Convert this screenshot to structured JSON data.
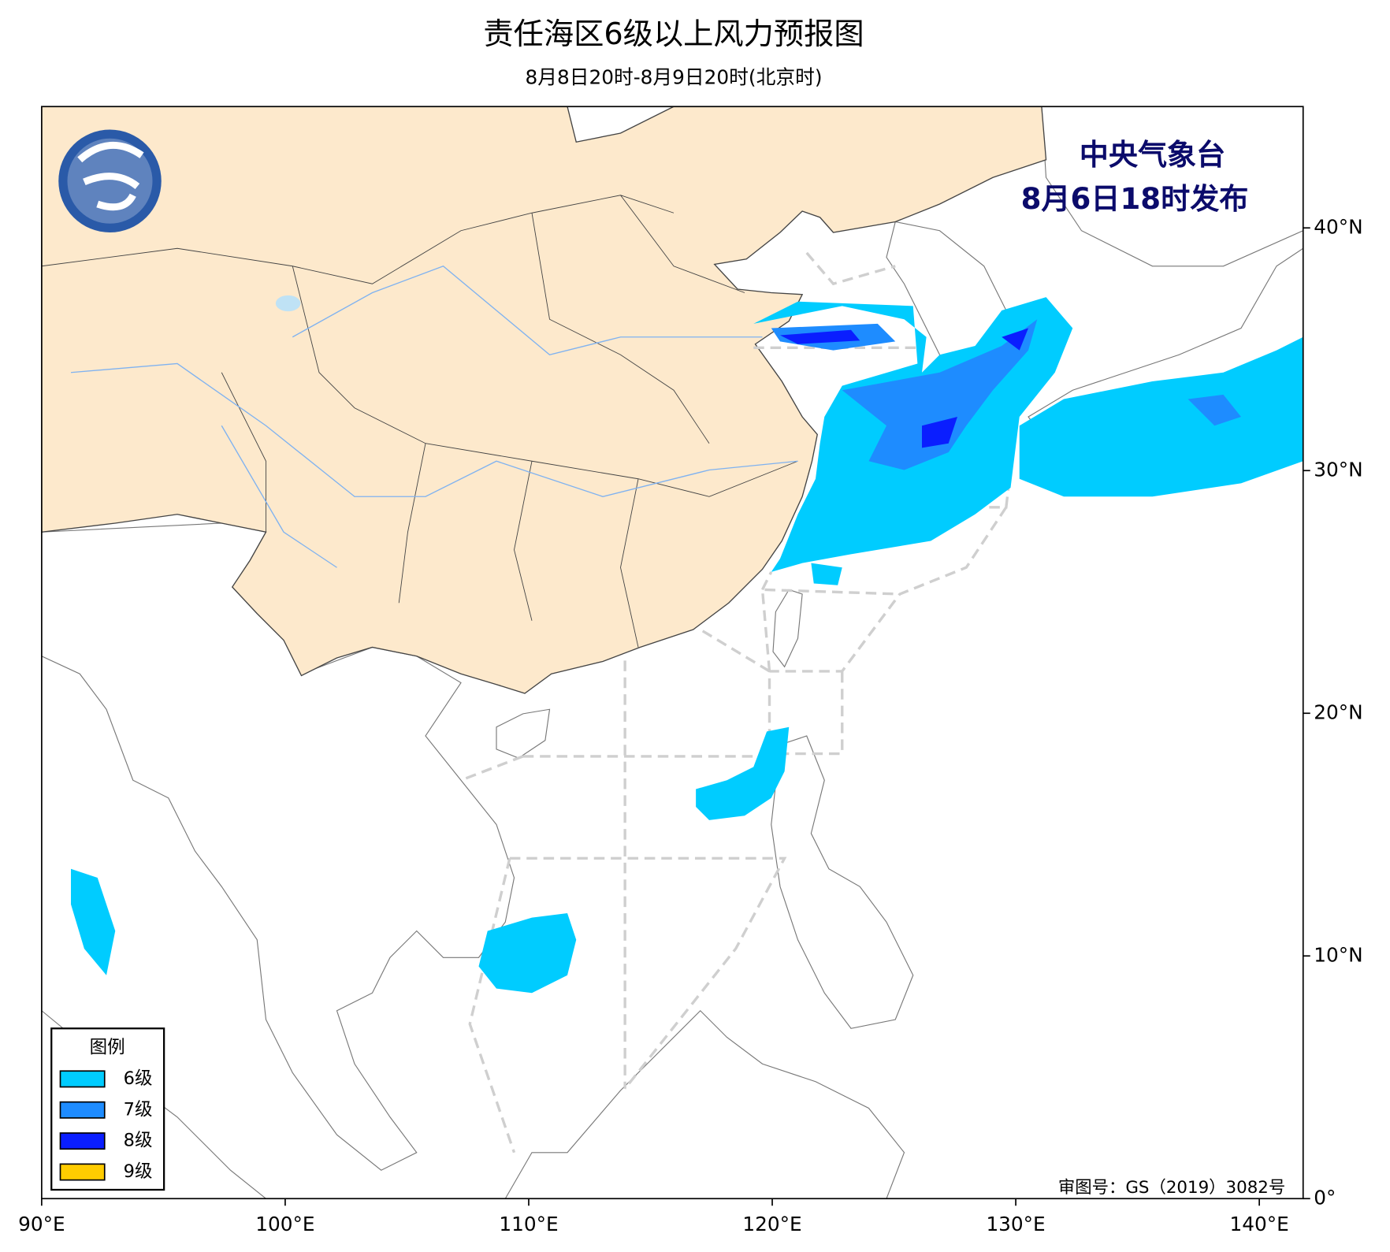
{
  "chart_data": {
    "type": "map",
    "title": "责任海区6级以上风力预报图",
    "subtitle": "8月8日20时-8月9日20时(北京时)",
    "issuer": [
      "中央气象台",
      "8月6日18时发布"
    ],
    "approval_note": "审图号：GS（2019）3082号",
    "legend": {
      "title": "图例",
      "items": [
        {
          "label": "6级",
          "color": "#00ccff"
        },
        {
          "label": "7级",
          "color": "#1e8cff"
        },
        {
          "label": "8级",
          "color": "#0a1eff"
        },
        {
          "label": "9级",
          "color": "#ffcc00"
        }
      ]
    },
    "xlim": [
      90,
      141.8
    ],
    "ylim": [
      0,
      45
    ],
    "xticks": [
      {
        "value": 90,
        "label": "90°E"
      },
      {
        "value": 100,
        "label": "100°E"
      },
      {
        "value": 110,
        "label": "110°E"
      },
      {
        "value": 120,
        "label": "120°E"
      },
      {
        "value": 130,
        "label": "130°E"
      },
      {
        "value": 140,
        "label": "140°E"
      }
    ],
    "yticks": [
      {
        "value": 0,
        "label": "0°"
      },
      {
        "value": 10,
        "label": "10°N"
      },
      {
        "value": 20,
        "label": "20°N"
      },
      {
        "value": 30,
        "label": "30°N"
      },
      {
        "value": 40,
        "label": "40°N"
      }
    ]
  }
}
